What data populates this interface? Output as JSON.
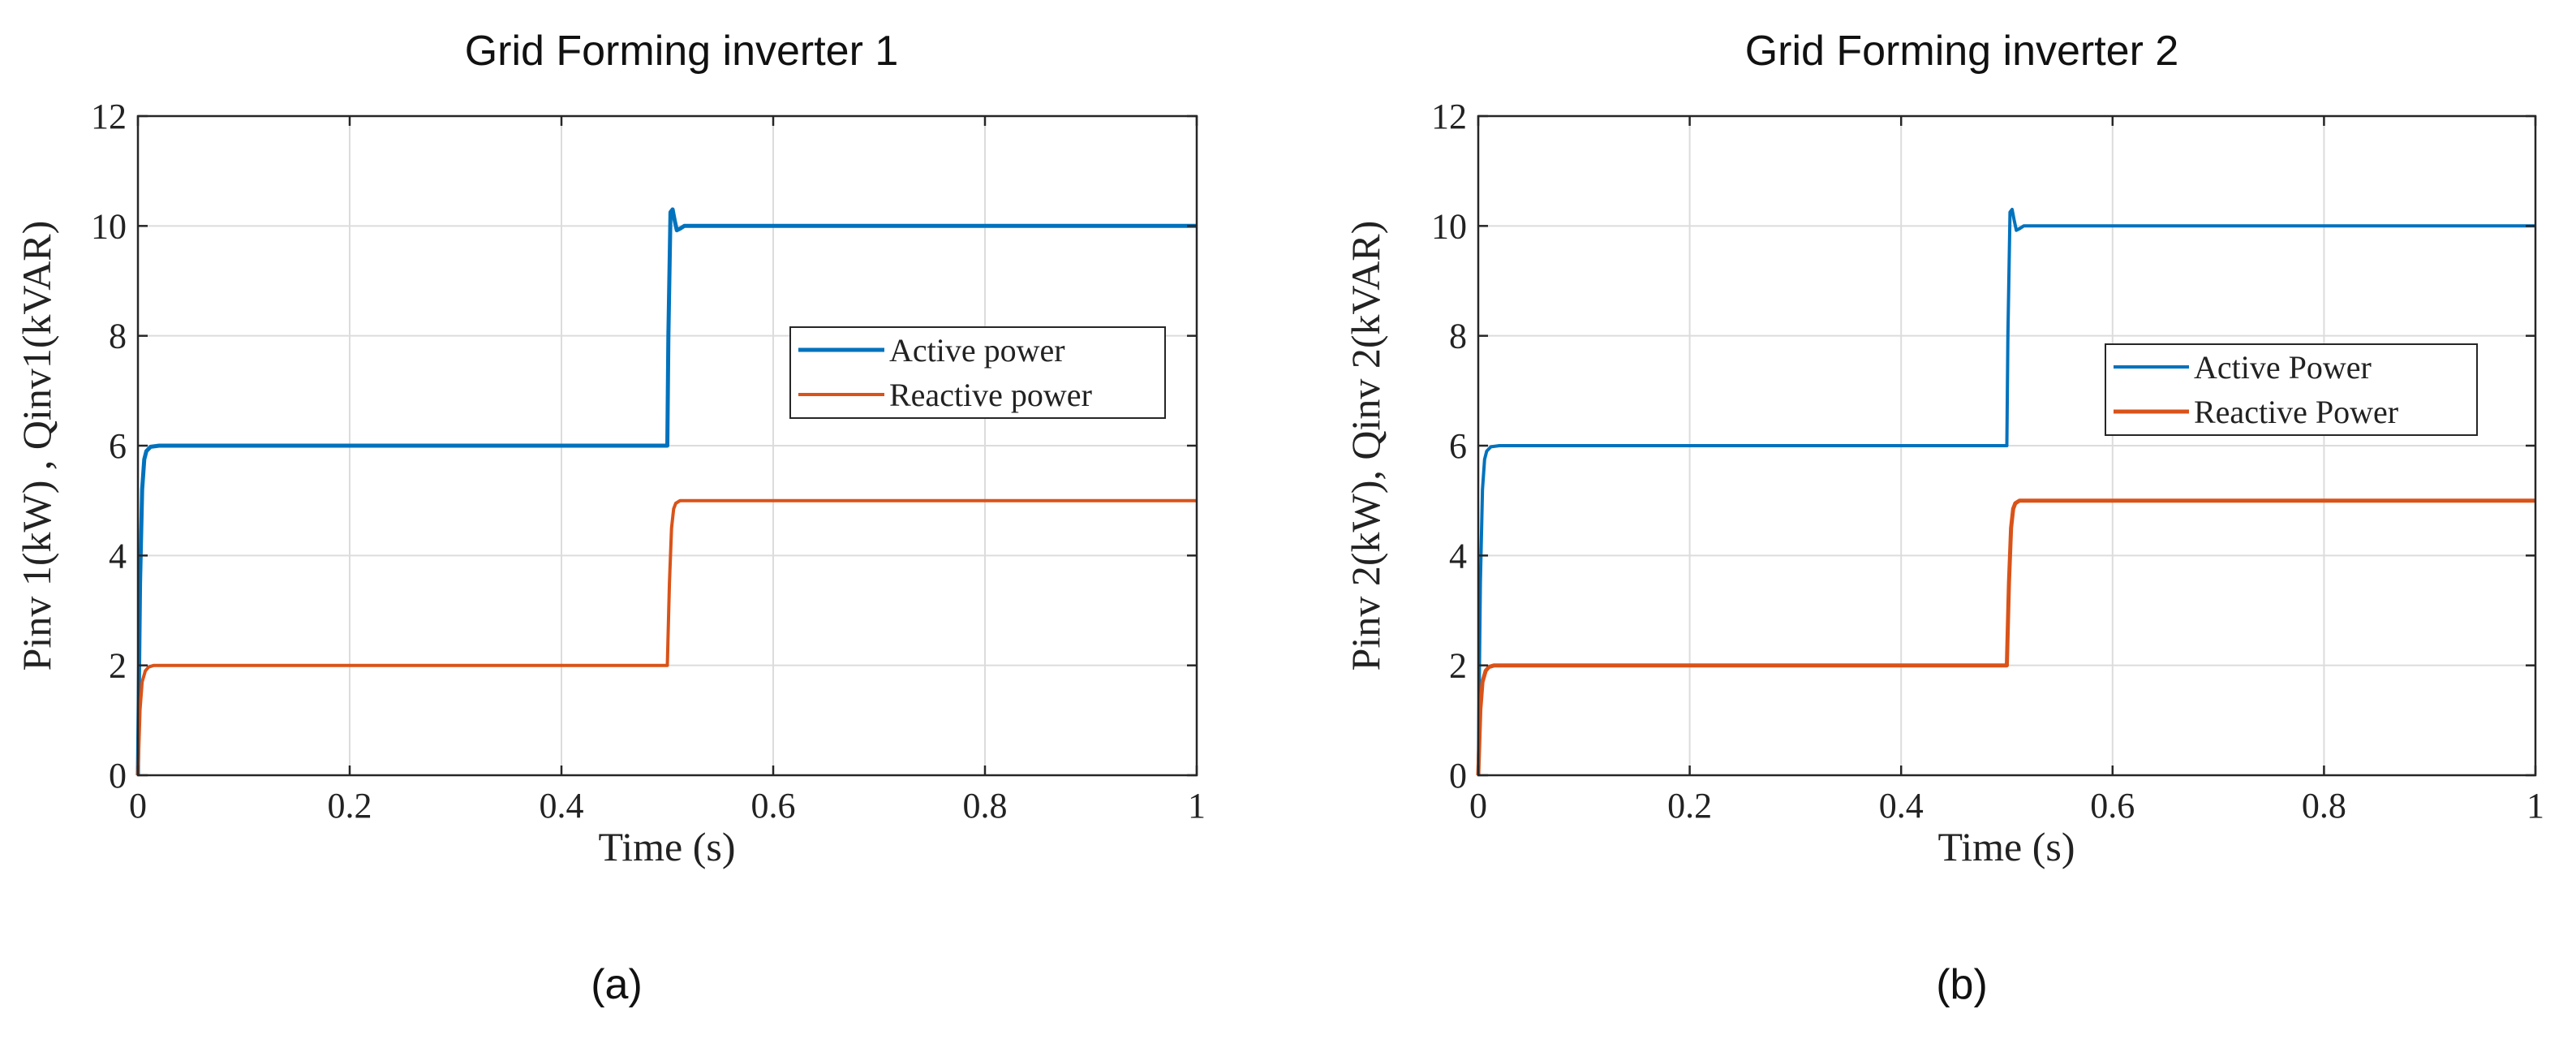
{
  "chart_data": [
    {
      "type": "line",
      "title": "Grid Forming inverter 1",
      "caption": "(a)",
      "xlabel": "Time (s)",
      "ylabel": "Pinv 1(kW) , Qinv1(kVAR)",
      "xlim": [
        0,
        1
      ],
      "ylim": [
        0,
        12
      ],
      "xticks": [
        0,
        0.2,
        0.4,
        0.6,
        0.8,
        1
      ],
      "xtick_labels": [
        "0",
        "0.2",
        "0.4",
        "0.6",
        "0.8",
        "1"
      ],
      "yticks": [
        0,
        2,
        4,
        6,
        8,
        10,
        12
      ],
      "ytick_labels": [
        "0",
        "2",
        "4",
        "6",
        "8",
        "10",
        "12"
      ],
      "grid": true,
      "legend_position": "center-right",
      "series": [
        {
          "name": "Active power",
          "color": "#0072BD",
          "x": [
            0,
            0.002,
            0.004,
            0.006,
            0.008,
            0.012,
            0.02,
            0.5,
            0.501,
            0.503,
            0.505,
            0.507,
            0.509,
            0.512,
            0.516,
            0.52,
            1.0
          ],
          "y": [
            0,
            3.5,
            5.2,
            5.75,
            5.9,
            5.98,
            6.0,
            6.0,
            8.0,
            10.25,
            10.3,
            10.1,
            9.92,
            9.95,
            10.0,
            10.0,
            10.0
          ]
        },
        {
          "name": "Reactive power",
          "color": "#D95319",
          "x": [
            0,
            0.002,
            0.004,
            0.007,
            0.01,
            0.015,
            0.5,
            0.502,
            0.504,
            0.506,
            0.508,
            0.512,
            0.52,
            1.0
          ],
          "y": [
            0,
            1.2,
            1.7,
            1.9,
            1.97,
            2.0,
            2.0,
            3.5,
            4.5,
            4.85,
            4.95,
            5.0,
            5.0,
            5.0
          ]
        }
      ]
    },
    {
      "type": "line",
      "title": "Grid Forming inverter 2",
      "caption": "(b)",
      "xlabel": "Time (s)",
      "ylabel": "Pinv 2(kW), Qinv 2(kVAR)",
      "xlim": [
        0,
        1
      ],
      "ylim": [
        0,
        12
      ],
      "xticks": [
        0,
        0.2,
        0.4,
        0.6,
        0.8,
        1
      ],
      "xtick_labels": [
        "0",
        "0.2",
        "0.4",
        "0.6",
        "0.8",
        "1"
      ],
      "yticks": [
        0,
        2,
        4,
        6,
        8,
        10,
        12
      ],
      "ytick_labels": [
        "0",
        "2",
        "4",
        "6",
        "8",
        "10",
        "12"
      ],
      "grid": true,
      "legend_position": "center-right",
      "series": [
        {
          "name": "Active Power",
          "color": "#0072BD",
          "x": [
            0,
            0.002,
            0.004,
            0.006,
            0.008,
            0.012,
            0.02,
            0.5,
            0.501,
            0.503,
            0.505,
            0.507,
            0.509,
            0.512,
            0.516,
            0.52,
            1.0
          ],
          "y": [
            0,
            3.5,
            5.2,
            5.75,
            5.9,
            5.98,
            6.0,
            6.0,
            8.0,
            10.25,
            10.3,
            10.1,
            9.92,
            9.95,
            10.0,
            10.0,
            10.0
          ]
        },
        {
          "name": "Reactive Power",
          "color": "#D95319",
          "x": [
            0,
            0.002,
            0.004,
            0.007,
            0.01,
            0.015,
            0.5,
            0.502,
            0.504,
            0.506,
            0.508,
            0.512,
            0.52,
            1.0
          ],
          "y": [
            0,
            1.2,
            1.7,
            1.9,
            1.97,
            2.0,
            2.0,
            3.5,
            4.5,
            4.85,
            4.95,
            5.0,
            5.0,
            5.0
          ]
        }
      ]
    }
  ]
}
